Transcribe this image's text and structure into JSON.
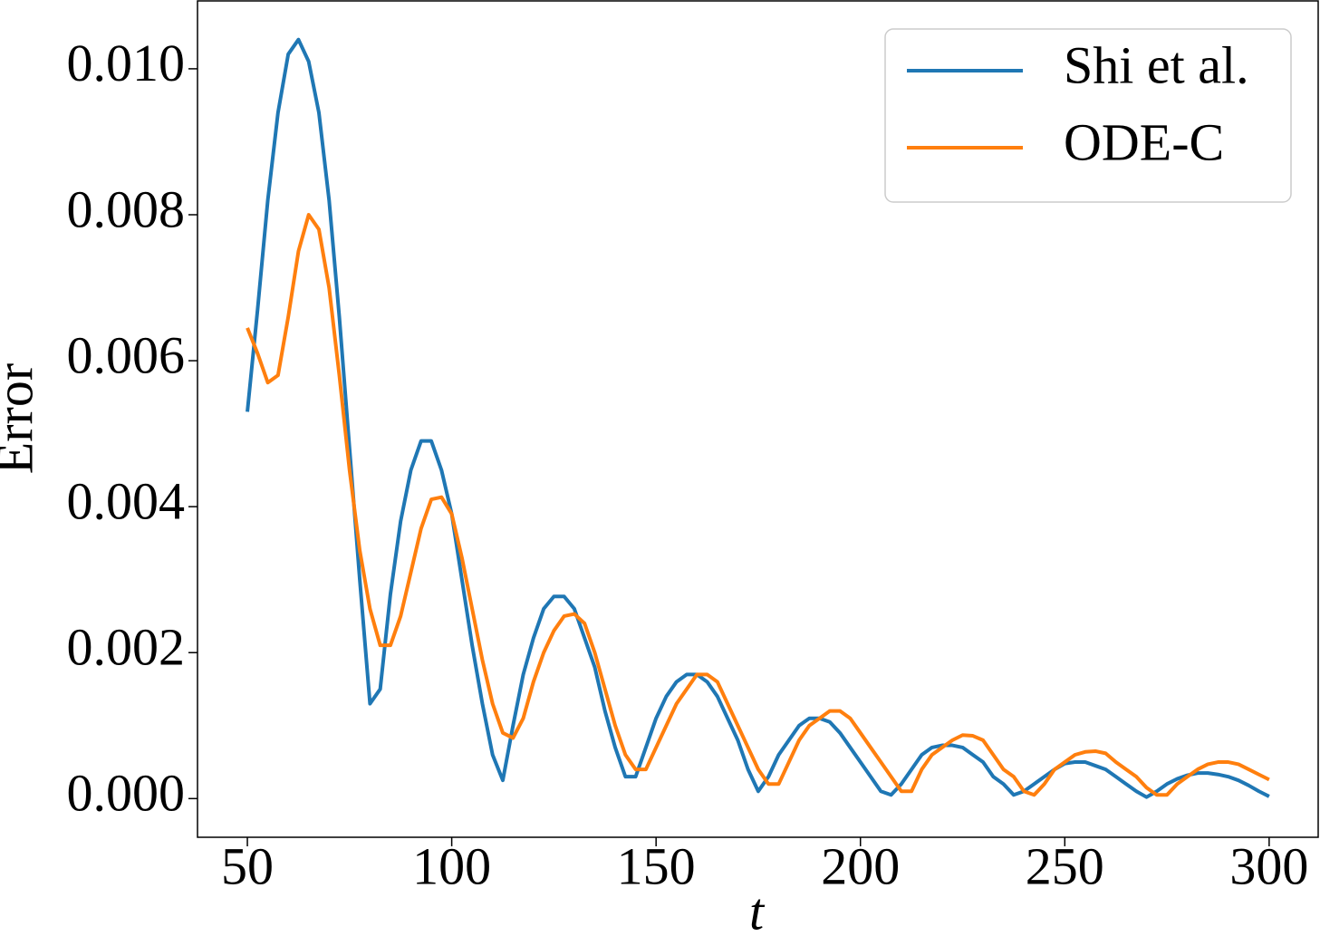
{
  "chart_data": {
    "type": "line",
    "xlabel": "t",
    "ylabel": "Error",
    "x": [
      50,
      52.5,
      55,
      57.5,
      60,
      62.5,
      65,
      67.5,
      70,
      72.5,
      75,
      77.5,
      80,
      82.5,
      85,
      87.5,
      90,
      92.5,
      95,
      97.5,
      100,
      102.5,
      105,
      107.5,
      110,
      112.5,
      115,
      117.5,
      120,
      122.5,
      125,
      127.5,
      130,
      132.5,
      135,
      137.5,
      140,
      142.5,
      145,
      147.5,
      150,
      152.5,
      155,
      157.5,
      160,
      162.5,
      165,
      167.5,
      170,
      172.5,
      175,
      177.5,
      180,
      182.5,
      185,
      187.5,
      190,
      192.5,
      195,
      197.5,
      200,
      202.5,
      205,
      207.5,
      210,
      212.5,
      215,
      217.5,
      220,
      222.5,
      225,
      227.5,
      230,
      232.5,
      235,
      237.5,
      240,
      242.5,
      245,
      247.5,
      250,
      252.5,
      255,
      257.5,
      260,
      262.5,
      265,
      267.5,
      270,
      272.5,
      275,
      277.5,
      280,
      282.5,
      285,
      287.5,
      290,
      292.5,
      295,
      297.5,
      300
    ],
    "series": [
      {
        "name": "Shi et al.",
        "color": "#1f77b4",
        "values": [
          0.0053,
          0.0067,
          0.0082,
          0.0094,
          0.0102,
          0.0104,
          0.0101,
          0.0094,
          0.0082,
          0.0066,
          0.0048,
          0.003,
          0.0013,
          0.0015,
          0.0028,
          0.0038,
          0.0045,
          0.0049,
          0.0049,
          0.0045,
          0.0039,
          0.003,
          0.0021,
          0.0013,
          0.0006,
          0.00025,
          0.001,
          0.0017,
          0.0022,
          0.0026,
          0.00277,
          0.00277,
          0.0026,
          0.0022,
          0.0018,
          0.0012,
          0.0007,
          0.0003,
          0.0003,
          0.0007,
          0.0011,
          0.0014,
          0.0016,
          0.0017,
          0.0017,
          0.0016,
          0.0014,
          0.0011,
          0.0008,
          0.0004,
          0.0001,
          0.0003,
          0.0006,
          0.0008,
          0.001,
          0.0011,
          0.0011,
          0.00105,
          0.0009,
          0.0007,
          0.0005,
          0.0003,
          0.0001,
          5e-05,
          0.0002,
          0.0004,
          0.0006,
          0.0007,
          0.00073,
          0.00073,
          0.0007,
          0.0006,
          0.0005,
          0.0003,
          0.0002,
          5e-05,
          0.0001,
          0.0002,
          0.0003,
          0.0004,
          0.00048,
          0.0005,
          0.0005,
          0.00045,
          0.0004,
          0.0003,
          0.0002,
          0.0001,
          2e-05,
          0.0001,
          0.0002,
          0.00027,
          0.00032,
          0.00035,
          0.00035,
          0.00033,
          0.0003,
          0.00025,
          0.00018,
          0.0001,
          3e-05
        ]
      },
      {
        "name": "ODE-C",
        "color": "#ff7f0e",
        "values": [
          0.00645,
          0.0061,
          0.0057,
          0.0058,
          0.0066,
          0.0075,
          0.008,
          0.0078,
          0.007,
          0.0058,
          0.0045,
          0.0034,
          0.0026,
          0.0021,
          0.0021,
          0.0025,
          0.0031,
          0.0037,
          0.0041,
          0.00413,
          0.0039,
          0.0033,
          0.0026,
          0.0019,
          0.0013,
          0.0009,
          0.00083,
          0.0011,
          0.0016,
          0.002,
          0.0023,
          0.0025,
          0.00253,
          0.0024,
          0.002,
          0.0015,
          0.001,
          0.0006,
          0.0004,
          0.0004,
          0.0007,
          0.001,
          0.0013,
          0.0015,
          0.0017,
          0.0017,
          0.0016,
          0.0013,
          0.001,
          0.0007,
          0.0004,
          0.0002,
          0.0002,
          0.0005,
          0.0008,
          0.001,
          0.0011,
          0.0012,
          0.0012,
          0.0011,
          0.0009,
          0.0007,
          0.0005,
          0.0003,
          0.0001,
          0.0001,
          0.0004,
          0.0006,
          0.0007,
          0.0008,
          0.00087,
          0.00086,
          0.0008,
          0.0006,
          0.0004,
          0.0003,
          0.0001,
          5e-05,
          0.0002,
          0.0004,
          0.0005,
          0.0006,
          0.00064,
          0.00065,
          0.00062,
          0.0005,
          0.0004,
          0.0003,
          0.00015,
          5e-05,
          5e-05,
          0.0002,
          0.0003,
          0.0004,
          0.00047,
          0.0005,
          0.0005,
          0.00047,
          0.0004,
          0.00033,
          0.00026
        ]
      }
    ],
    "xlim": [
      37.8,
      312
    ],
    "ylim": [
      -0.00053,
      0.01093
    ],
    "xticks": [
      50,
      100,
      150,
      200,
      250,
      300
    ],
    "yticks": [
      {
        "value": 0,
        "label": "0.000"
      },
      {
        "value": 0.002,
        "label": "0.002"
      },
      {
        "value": 0.004,
        "label": "0.004"
      },
      {
        "value": 0.006,
        "label": "0.006"
      },
      {
        "value": 0.008,
        "label": "0.008"
      },
      {
        "value": 0.01,
        "label": "0.010"
      }
    ],
    "legend": "upper right",
    "grid": false
  }
}
